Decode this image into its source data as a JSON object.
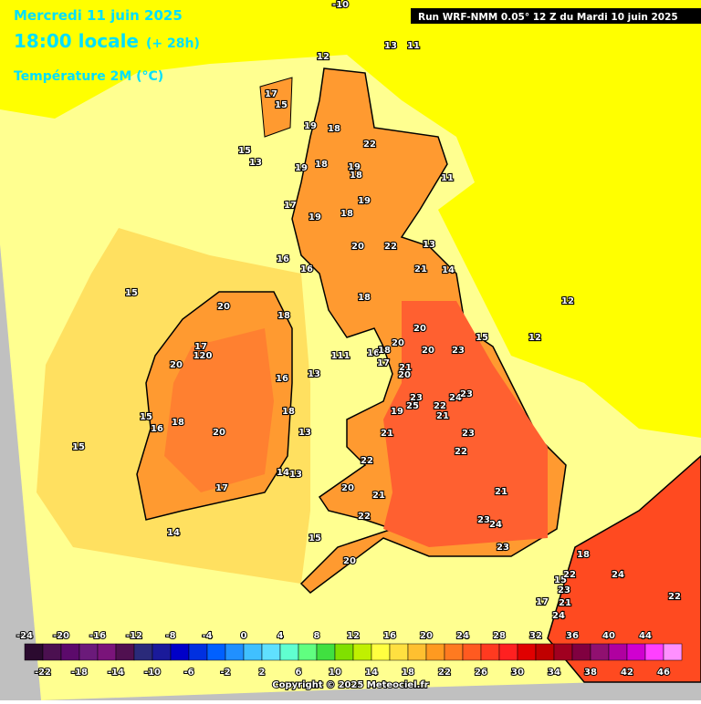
{
  "header": {
    "date": "Mercredi 11 juin 2025",
    "time": "18:00 locale",
    "lead": "(+ 28h)",
    "variable": "Température 2M (°C)",
    "run": "Run WRF-NMM 0.05° 12 Z du Mardi 10 juin 2025"
  },
  "legend": {
    "values": [
      -24,
      -22,
      -20,
      -18,
      -16,
      -14,
      -12,
      -10,
      -8,
      -6,
      -4,
      -2,
      0,
      2,
      4,
      6,
      8,
      10,
      12,
      14,
      16,
      18,
      20,
      22,
      24,
      26,
      28,
      30,
      32,
      34,
      36,
      38,
      40,
      42,
      44,
      46
    ],
    "colors": [
      "#2b0a2f",
      "#4b1050",
      "#5c0a6b",
      "#6b1a7a",
      "#7a147a",
      "#501050",
      "#2a2a7a",
      "#1a1a9a",
      "#0000c8",
      "#0030e0",
      "#0060ff",
      "#2090ff",
      "#40c0ff",
      "#60e0ff",
      "#60ffd0",
      "#60ff80",
      "#40e040",
      "#80e000",
      "#c0f000",
      "#ffff40",
      "#ffe040",
      "#ffc030",
      "#ff9a20",
      "#ff7a20",
      "#ff5a20",
      "#ff3a20",
      "#ff2020",
      "#e00000",
      "#c00000",
      "#a00020",
      "#800040",
      "#901070",
      "#b000a0",
      "#d000d0",
      "#ff40ff",
      "#ff90ff"
    ]
  },
  "contour_labels": [
    "-10",
    "12",
    "13",
    "11",
    "17",
    "15",
    "19",
    "18",
    "22",
    "15",
    "13",
    "19",
    "18",
    "19",
    "18",
    "11",
    "19",
    "17",
    "19",
    "18",
    "20",
    "22",
    "13",
    "16",
    "16",
    "21",
    "14",
    "15",
    "18",
    "12",
    "20",
    "18",
    "20",
    "15",
    "12",
    "17",
    "120",
    "111",
    "16",
    "18",
    "20",
    "20",
    "23",
    "17",
    "21",
    "20",
    "20",
    "13",
    "16",
    "23",
    "25",
    "22",
    "24",
    "23",
    "19",
    "21",
    "18",
    "15",
    "16",
    "18",
    "20",
    "13",
    "21",
    "23",
    "15",
    "22",
    "22",
    "14",
    "13",
    "17",
    "20",
    "21",
    "21",
    "22",
    "23",
    "24",
    "14",
    "15",
    "23",
    "20",
    "18",
    "15",
    "22",
    "24",
    "23",
    "21",
    "17",
    "24",
    "22"
  ],
  "copyright": "Copyright © 2025 Meteociel.fr"
}
